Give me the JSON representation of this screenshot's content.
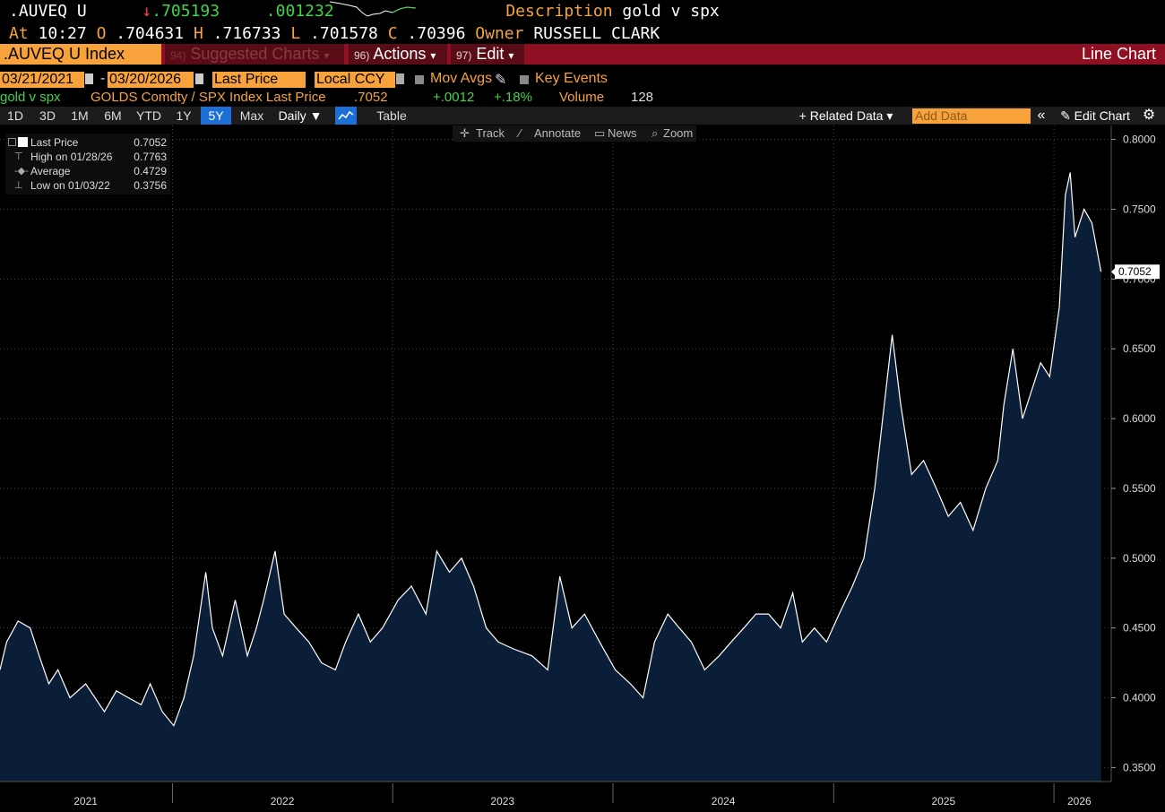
{
  "header": {
    "ticker": ".AUVEQ U",
    "arrow": "↓",
    "last": ".705193",
    "change": ".001232",
    "description_label": "Description",
    "description": "gold v spx",
    "at_label": "At",
    "time": "10:27",
    "o_label": "O",
    "open": ".704631",
    "h_label": "H",
    "high": ".716733",
    "l_label": "L",
    "low": ".701578",
    "c_label": "C",
    "close": ".70396",
    "owner_label": "Owner",
    "owner": "RUSSELL CLARK"
  },
  "menubar": {
    "index": ".AUVEQ U Index",
    "suggested_num": "94)",
    "suggested": "Suggested Charts",
    "actions_num": "96)",
    "actions": "Actions",
    "edit_num": "97)",
    "edit": "Edit",
    "title": "Line Chart",
    "caret": "▾"
  },
  "controls": {
    "start_date": "03/21/2021",
    "dash": "-",
    "end_date": "03/20/2026",
    "field": "Last Price",
    "currency": "Local CCY",
    "mov_avgs": "Mov Avgs",
    "key_events": "Key Events"
  },
  "info": {
    "name": "gold v spx",
    "security": "GOLDS Comdty / SPX Index Last Price",
    "price": ".7052",
    "chg": "+.0012",
    "pct": "+.18%",
    "volume_label": "Volume",
    "volume": "128"
  },
  "toolbar": {
    "periods": [
      "1D",
      "3D",
      "1M",
      "6M",
      "YTD",
      "1Y",
      "5Y",
      "Max"
    ],
    "selected_period": "5Y",
    "frequency": "Daily ▼",
    "table": "Table",
    "related_data": "+ Related Data ▾",
    "add_data_placeholder": "Add Data",
    "collapse": "«",
    "edit_chart": "✎ Edit Chart",
    "settings": "⚙"
  },
  "mini_toolbar": {
    "track": "Track",
    "annotate": "Annotate",
    "news": "News",
    "zoom": "Zoom"
  },
  "legend": {
    "last_label": "Last Price",
    "last_value": "0.7052",
    "high_label": "High on 01/28/26",
    "high_value": "0.7763",
    "avg_label": "Average",
    "avg_value": "0.4729",
    "low_label": "Low on 01/03/22",
    "low_value": "0.3756"
  },
  "colors": {
    "accent": "#f7a23b",
    "menubar": "#8f1022",
    "fill": "#0b1e38",
    "line": "#ffffff",
    "selected": "#1b6fd6"
  },
  "chart_data": {
    "type": "area",
    "title": "",
    "xlabel": "",
    "ylabel": "",
    "x_ticks": [
      "2021",
      "2022",
      "2023",
      "2024",
      "2025",
      "2026"
    ],
    "ylim": [
      0.34,
      0.81
    ],
    "y_ticks": [
      0.35,
      0.4,
      0.45,
      0.5,
      0.55,
      0.6,
      0.65,
      0.7,
      0.75,
      0.8
    ],
    "last_value_label": "0.7052",
    "grid": true,
    "series": [
      {
        "x": [
          "2021-03-21",
          "2021-04-01",
          "2021-04-20",
          "2021-05-10",
          "2021-05-25",
          "2021-06-10",
          "2021-06-25",
          "2021-07-15",
          "2021-08-10",
          "2021-09-10",
          "2021-09-30",
          "2021-10-20",
          "2021-11-10",
          "2021-11-25",
          "2021-12-15",
          "2022-01-03",
          "2022-01-20",
          "2022-02-05",
          "2022-02-25",
          "2022-03-08",
          "2022-03-25",
          "2022-04-15",
          "2022-05-05",
          "2022-05-20",
          "2022-06-01",
          "2022-06-20",
          "2022-07-05",
          "2022-07-25",
          "2022-08-15",
          "2022-09-05",
          "2022-09-28",
          "2022-10-15",
          "2022-11-05",
          "2022-11-25",
          "2022-12-15",
          "2023-01-10",
          "2023-02-01",
          "2023-02-25",
          "2023-03-15",
          "2023-04-05",
          "2023-04-25",
          "2023-05-15",
          "2023-06-05",
          "2023-06-25",
          "2023-07-20",
          "2023-08-20",
          "2023-09-15",
          "2023-10-05",
          "2023-10-25",
          "2023-11-15",
          "2023-12-10",
          "2024-01-05",
          "2024-01-30",
          "2024-02-20",
          "2024-03-10",
          "2024-04-01",
          "2024-04-20",
          "2024-05-10",
          "2024-06-01",
          "2024-06-25",
          "2024-07-15",
          "2024-08-05",
          "2024-08-25",
          "2024-09-15",
          "2024-10-05",
          "2024-10-25",
          "2024-11-10",
          "2024-11-30",
          "2024-12-20",
          "2025-01-10",
          "2025-02-01",
          "2025-02-20",
          "2025-03-10",
          "2025-04-08",
          "2025-04-22",
          "2025-05-10",
          "2025-05-30",
          "2025-06-20",
          "2025-07-10",
          "2025-07-30",
          "2025-08-20",
          "2025-09-10",
          "2025-09-30",
          "2025-10-10",
          "2025-10-25",
          "2025-11-10",
          "2025-11-25",
          "2025-12-10",
          "2025-12-25",
          "2026-01-10",
          "2026-01-20",
          "2026-01-28",
          "2026-02-05",
          "2026-02-20",
          "2026-03-05",
          "2026-03-20"
        ],
        "y": [
          0.42,
          0.44,
          0.455,
          0.45,
          0.43,
          0.41,
          0.42,
          0.4,
          0.41,
          0.39,
          0.405,
          0.4,
          0.395,
          0.41,
          0.39,
          0.38,
          0.4,
          0.43,
          0.49,
          0.45,
          0.43,
          0.47,
          0.43,
          0.45,
          0.47,
          0.505,
          0.46,
          0.45,
          0.44,
          0.425,
          0.42,
          0.44,
          0.46,
          0.44,
          0.45,
          0.47,
          0.48,
          0.46,
          0.505,
          0.49,
          0.5,
          0.48,
          0.45,
          0.44,
          0.435,
          0.43,
          0.42,
          0.487,
          0.45,
          0.46,
          0.44,
          0.42,
          0.41,
          0.4,
          0.44,
          0.46,
          0.45,
          0.44,
          0.42,
          0.43,
          0.44,
          0.45,
          0.46,
          0.46,
          0.45,
          0.475,
          0.44,
          0.45,
          0.44,
          0.46,
          0.48,
          0.5,
          0.55,
          0.66,
          0.61,
          0.56,
          0.57,
          0.55,
          0.53,
          0.54,
          0.52,
          0.55,
          0.57,
          0.61,
          0.65,
          0.6,
          0.62,
          0.64,
          0.63,
          0.68,
          0.76,
          0.7763,
          0.73,
          0.75,
          0.74,
          0.7052
        ]
      }
    ]
  }
}
